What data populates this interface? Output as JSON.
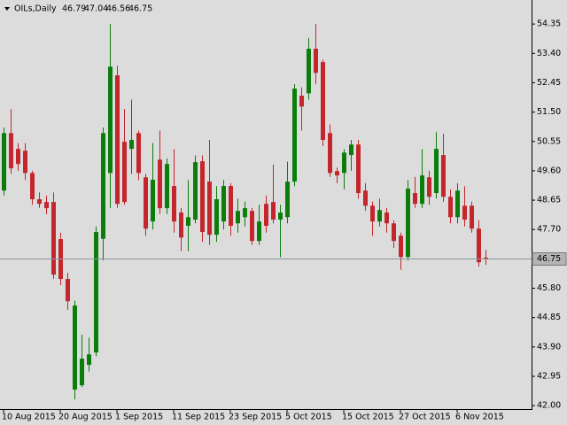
{
  "chart_data": {
    "type": "candlestick",
    "symbol": "OILs,Daily",
    "categories": [
      "10 Aug 2015",
      null,
      null,
      null,
      null,
      null,
      null,
      null,
      "20 Aug 2015",
      null,
      null,
      null,
      null,
      null,
      null,
      null,
      "1 Sep 2015",
      null,
      null,
      null,
      null,
      null,
      null,
      null,
      "11 Sep 2015",
      null,
      null,
      null,
      null,
      null,
      null,
      null,
      "23 Sep 2015",
      null,
      null,
      null,
      null,
      null,
      null,
      null,
      "5 Oct 2015",
      null,
      null,
      null,
      null,
      null,
      null,
      null,
      "15 Oct 2015",
      null,
      null,
      null,
      null,
      null,
      null,
      null,
      "27 Oct 2015",
      null,
      null,
      null,
      null,
      null,
      null,
      null,
      "6 Nov 2015",
      null,
      null,
      null,
      null
    ],
    "open": [
      48.96,
      50.82,
      50.31,
      50.25,
      49.53,
      48.68,
      48.59,
      48.59,
      47.39,
      46.1,
      42.52,
      42.66,
      43.32,
      43.72,
      47.4,
      49.53,
      52.69,
      50.54,
      50.31,
      50.82,
      49.39,
      47.96,
      49.96,
      48.39,
      49.11,
      48.25,
      47.82,
      48.02,
      49.91,
      49.25,
      47.53,
      47.96,
      49.11,
      47.9,
      48.1,
      48.3,
      47.33,
      48.53,
      48.59,
      48.02,
      48.1,
      49.25,
      52.03,
      52.11,
      53.55,
      53.12,
      50.82,
      49.59,
      49.53,
      50.11,
      50.45,
      48.96,
      48.47,
      47.96,
      48.25,
      47.9,
      47.5,
      46.81,
      48.88,
      48.53,
      49.39,
      48.88,
      50.11,
      48.76,
      48.1,
      48.47,
      48.47,
      47.73,
      46.79
    ],
    "high": [
      51.0,
      51.6,
      50.5,
      50.5,
      49.6,
      48.9,
      48.8,
      48.9,
      47.6,
      46.3,
      45.4,
      44.3,
      44.2,
      47.8,
      51.0,
      54.35,
      53.0,
      51.6,
      51.9,
      50.9,
      49.5,
      50.5,
      50.9,
      50.0,
      50.3,
      48.4,
      49.3,
      50.1,
      50.1,
      50.6,
      49.1,
      49.3,
      49.2,
      48.7,
      48.6,
      48.4,
      48.5,
      48.8,
      49.8,
      48.5,
      49.9,
      52.4,
      52.3,
      53.9,
      54.35,
      53.2,
      51.1,
      49.7,
      50.3,
      50.6,
      50.6,
      49.2,
      48.6,
      48.7,
      48.4,
      48.0,
      47.6,
      49.3,
      49.4,
      50.3,
      49.6,
      50.85,
      50.8,
      49.0,
      49.2,
      49.1,
      48.6,
      48.0,
      47.04
    ],
    "low": [
      48.8,
      49.5,
      49.6,
      49.3,
      48.5,
      48.4,
      48.2,
      46.1,
      45.9,
      45.1,
      42.2,
      42.6,
      43.1,
      43.6,
      46.7,
      48.4,
      48.4,
      48.5,
      49.5,
      49.3,
      47.5,
      47.7,
      48.2,
      48.2,
      47.6,
      47.0,
      47.0,
      47.9,
      47.3,
      47.2,
      47.3,
      47.7,
      47.5,
      47.6,
      47.8,
      47.2,
      47.2,
      47.6,
      47.9,
      46.8,
      47.9,
      49.1,
      50.9,
      51.9,
      52.4,
      50.4,
      49.4,
      49.2,
      49.0,
      49.6,
      48.7,
      48.3,
      47.5,
      47.8,
      47.6,
      47.1,
      46.4,
      46.7,
      48.4,
      48.4,
      48.5,
      48.7,
      48.6,
      47.9,
      47.9,
      47.8,
      47.6,
      46.5,
      46.56
    ],
    "close": [
      50.82,
      49.68,
      49.82,
      49.53,
      48.68,
      48.53,
      48.39,
      46.24,
      46.1,
      45.38,
      45.24,
      43.52,
      43.66,
      47.62,
      50.82,
      52.97,
      48.53,
      48.59,
      50.6,
      49.53,
      47.73,
      49.31,
      48.39,
      49.82,
      47.96,
      47.44,
      48.1,
      49.88,
      47.62,
      47.53,
      48.68,
      49.11,
      47.82,
      48.3,
      48.39,
      47.33,
      47.96,
      47.82,
      48.02,
      48.25,
      49.25,
      52.26,
      51.68,
      53.55,
      52.77,
      50.6,
      49.53,
      49.45,
      50.19,
      50.45,
      48.88,
      48.47,
      47.96,
      48.33,
      47.9,
      47.33,
      46.81,
      49.02,
      48.53,
      49.45,
      48.76,
      50.31,
      48.76,
      48.1,
      48.96,
      48.02,
      47.73,
      46.64,
      46.75
    ],
    "up_color": "#0b7d0b",
    "down_color": "#c3262c",
    "last_line_color": "#8a96a0",
    "ylim": [
      41.89,
      55.07
    ],
    "yticks": [
      54.35,
      {
        "value": 53.4,
        "label": "53.40"
      },
      52.45,
      {
        "value": 51.5,
        "label": "51.50"
      },
      50.55,
      {
        "value": 49.6,
        "label": "49.60"
      },
      48.65,
      {
        "value": 47.7,
        "label": "47.70"
      },
      {
        "value": 45.8,
        "label": "45.80"
      },
      44.85,
      {
        "value": 43.9,
        "label": "43.90"
      },
      42.95,
      {
        "value": 42,
        "label": "42.00"
      }
    ]
  }
}
